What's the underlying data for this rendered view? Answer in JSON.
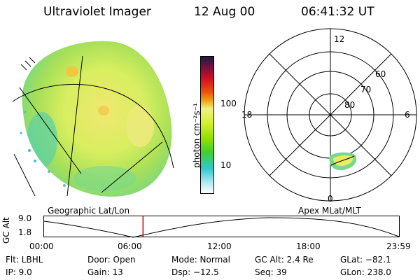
{
  "header": {
    "title": "Ultraviolet Imager",
    "date": "12 Aug 00",
    "time": "06:41:32 UT"
  },
  "colorbar": {
    "unit_label": "photon cm⁻²s⁻¹",
    "ticks": [
      "100",
      "10"
    ]
  },
  "polar_plot": {
    "mlt_labels": {
      "top": "12",
      "left": "18",
      "right": "6",
      "bottom": "0"
    },
    "lat_labels": [
      "60",
      "70",
      "80"
    ]
  },
  "panel_labels": {
    "left": "Geographic Lat/Lon",
    "right": "Apex MLat/MLT"
  },
  "timeline": {
    "ylabel": "GC Alt",
    "ytick_top": "9.0",
    "ytick_bottom": "1.8",
    "xticks": [
      "00:00",
      "06:00",
      "12:00",
      "18:00",
      "23:59"
    ],
    "current_marker_hour": 6.69,
    "colors": {
      "curve": "#000000",
      "marker": "#cc0000"
    }
  },
  "info": {
    "flt": "Flt: LBHL",
    "ip": "IP:  9.0",
    "door": "Door: Open",
    "gain": "Gain: 13",
    "mode": "Mode: Normal",
    "dsp": "Dsp:  −12.5",
    "gcalt": "GC Alt: 2.4 Re",
    "seq": "Seq: 39",
    "glat": "GLat: −82.1",
    "glon": "GLon: 238.0"
  }
}
